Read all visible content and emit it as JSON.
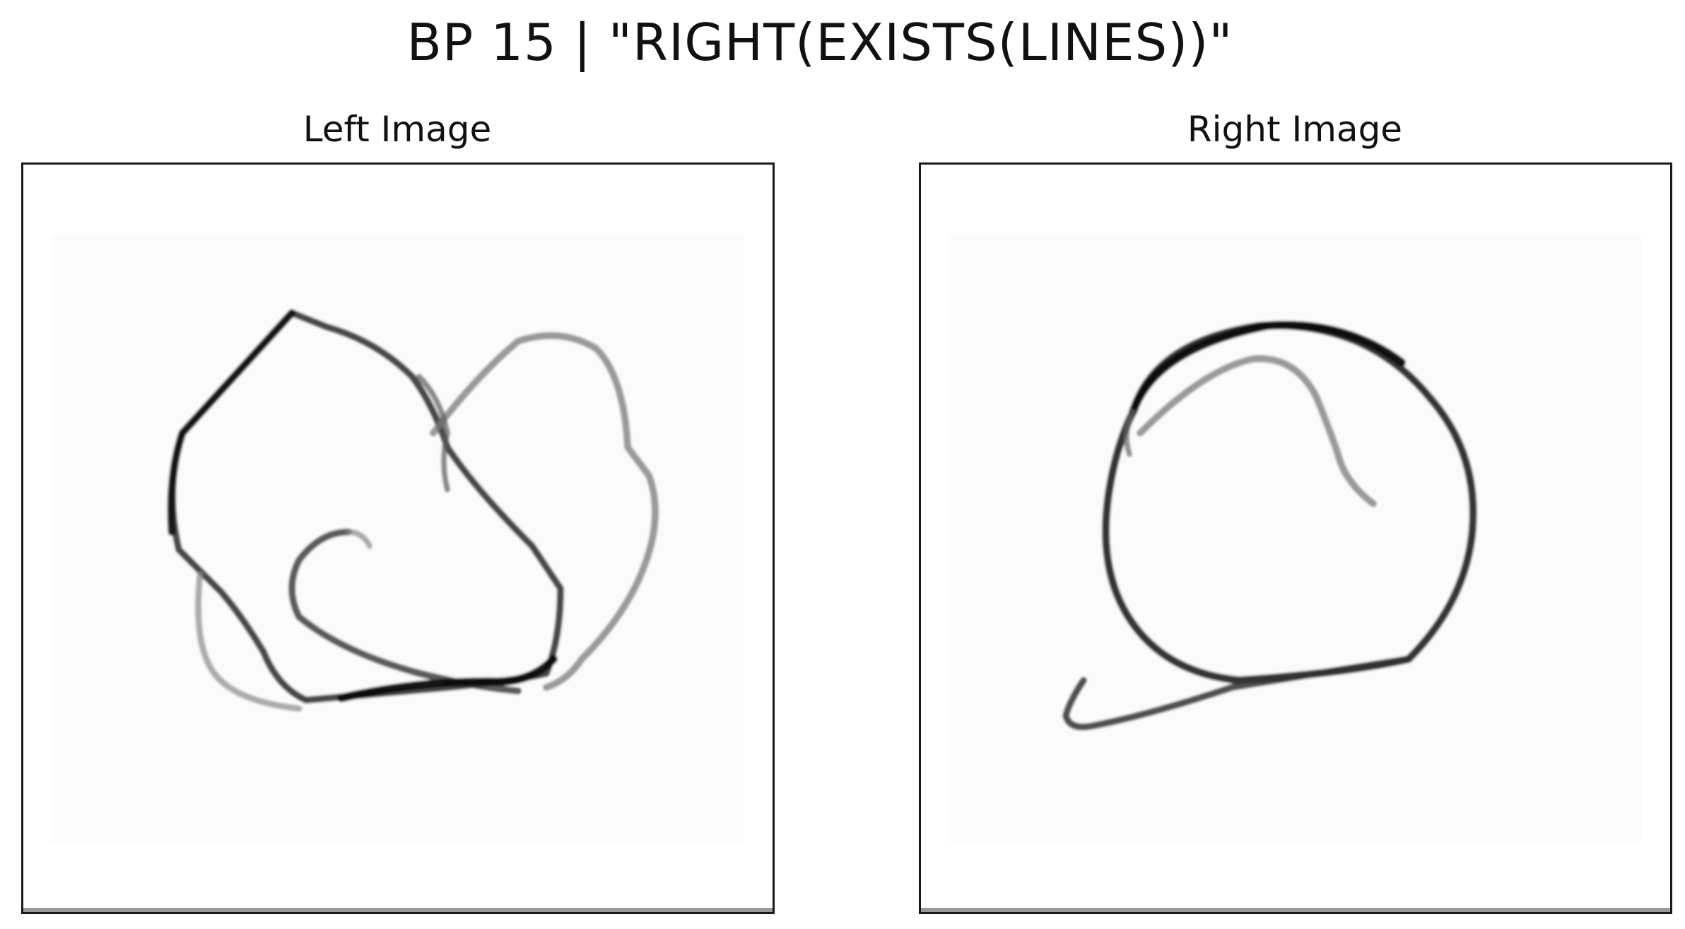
{
  "title": "BP 15 | \"RIGHT(EXISTS(LINES))\"",
  "panels": {
    "left": {
      "title": "Left Image"
    },
    "right": {
      "title": "Right Image"
    }
  },
  "stroke_color": "#1a1a1a",
  "background_color": "#ffffff"
}
